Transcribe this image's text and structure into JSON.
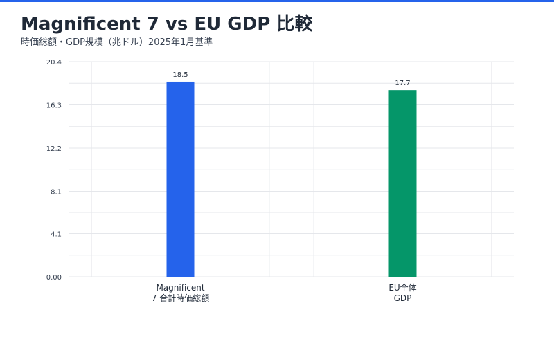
{
  "title": "Magnificent 7 vs EU GDP 比較",
  "subtitle": "時価総額・GDP規模（兆ドル）2025年1月基準",
  "colors": {
    "accent": "#2563eb",
    "mag7": "#2563eb",
    "eu": "#059669"
  },
  "chart_data": {
    "type": "bar",
    "title": "Magnificent 7 vs EU GDP 比較",
    "subtitle": "時価総額・GDP規模（兆ドル）2025年1月基準",
    "xlabel": "",
    "ylabel": "",
    "categories": [
      "Magnificent\n7 合計時価総額",
      "EU全体\nGDP"
    ],
    "values": [
      18.5,
      17.7
    ],
    "value_labels": [
      "18.5",
      "17.7"
    ],
    "bar_colors": [
      "#2563eb",
      "#059669"
    ],
    "ylim": [
      0,
      20.4
    ],
    "yticks": [
      0,
      4.1,
      8.1,
      12.2,
      16.3,
      20.4
    ],
    "ytick_labels": [
      "0.00",
      "4.1",
      "8.1",
      "12.2",
      "16.3",
      "20.4"
    ],
    "grid": true,
    "legend": "none"
  }
}
